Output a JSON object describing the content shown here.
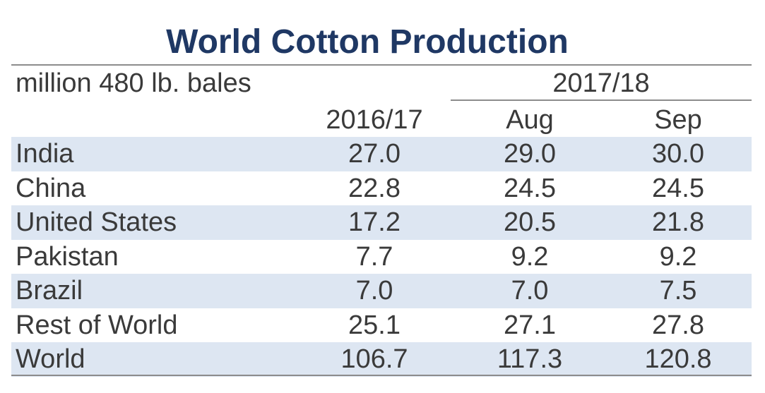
{
  "chart_data": {
    "type": "table",
    "title": "World Cotton Production",
    "units": "million 480 lb. bales",
    "column_group": "2017/18",
    "columns": [
      "2016/17",
      "Aug",
      "Sep"
    ],
    "rows": [
      {
        "label": "India",
        "values": [
          "27.0",
          "29.0",
          "30.0"
        ]
      },
      {
        "label": "China",
        "values": [
          "22.8",
          "24.5",
          "24.5"
        ]
      },
      {
        "label": "United States",
        "values": [
          "17.2",
          "20.5",
          "21.8"
        ]
      },
      {
        "label": "Pakistan",
        "values": [
          "7.7",
          "9.2",
          "9.2"
        ]
      },
      {
        "label": "Brazil",
        "values": [
          "7.0",
          "7.0",
          "7.5"
        ]
      },
      {
        "label": "Rest of World",
        "values": [
          "25.1",
          "27.1",
          "27.8"
        ]
      },
      {
        "label": "World",
        "values": [
          "106.7",
          "117.3",
          "120.8"
        ]
      }
    ]
  },
  "colors": {
    "title": "#1f3864",
    "row_shade": "#dde6f2",
    "text": "#3a3a3a",
    "rule": "#8c8c8c"
  }
}
